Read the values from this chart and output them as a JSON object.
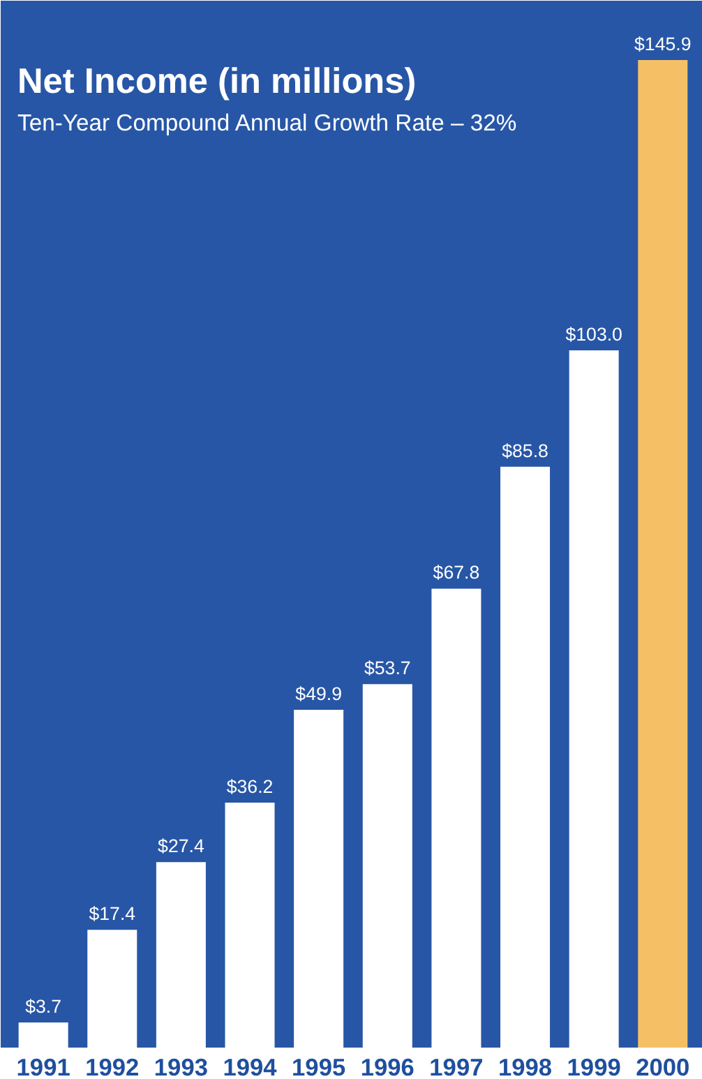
{
  "chart_data": {
    "type": "bar",
    "title": "Net Income (in millions)",
    "subtitle": "Ten-Year Compound Annual Growth Rate – 32%",
    "categories": [
      "1991",
      "1992",
      "1993",
      "1994",
      "1995",
      "1996",
      "1997",
      "1998",
      "1999",
      "2000"
    ],
    "values": [
      3.7,
      17.4,
      27.4,
      36.2,
      49.9,
      53.7,
      67.8,
      85.8,
      103.0,
      145.9
    ],
    "colors": [
      "#ffffff",
      "#ffffff",
      "#ffffff",
      "#ffffff",
      "#ffffff",
      "#ffffff",
      "#ffffff",
      "#ffffff",
      "#ffffff",
      "#f5c065"
    ],
    "value_labels": [
      "$3.7",
      "$17.4",
      "$27.4",
      "$36.2",
      "$49.9",
      "$53.7",
      "$67.8",
      "$85.8",
      "$103.0",
      "$145.9"
    ],
    "grid": false
  }
}
